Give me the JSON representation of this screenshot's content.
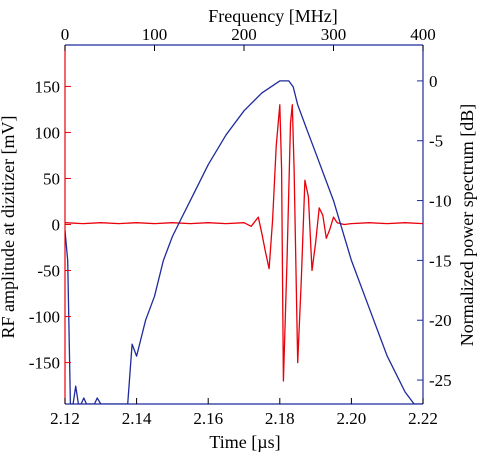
{
  "chart_data": {
    "type": "line",
    "xlabel_bottom": "Time [µs]",
    "xlabel_top": "Frequency [MHz]",
    "ylabel_left": "RF amplitude at dizitizer [mV]",
    "ylabel_right": "Normalized power spectrum [dB]",
    "x_bottom": {
      "range": [
        2.12,
        2.22
      ],
      "ticks": [
        2.12,
        2.14,
        2.16,
        2.18,
        2.2,
        2.22
      ],
      "tick_labels": [
        "2.12",
        "2.14",
        "2.16",
        "2.18",
        "2.20",
        "2.22"
      ]
    },
    "x_top": {
      "range": [
        0,
        400
      ],
      "ticks": [
        0,
        100,
        200,
        300,
        400
      ],
      "tick_labels": [
        "0",
        "100",
        "200",
        "300",
        "400"
      ]
    },
    "y_left": {
      "range": [
        -195,
        195
      ],
      "ticks": [
        -150,
        -100,
        -50,
        0,
        50,
        100,
        150
      ],
      "tick_labels": [
        "-150",
        "-100",
        "-50",
        "0",
        "50",
        "100",
        "150"
      ]
    },
    "y_right": {
      "range": [
        -27,
        3
      ],
      "ticks": [
        -25,
        -20,
        -15,
        -10,
        -5,
        0
      ],
      "tick_labels": [
        "-25",
        "-20",
        "-15",
        "-10",
        "-5",
        "0"
      ]
    },
    "grid": false,
    "series": [
      {
        "axis": "left-bottom",
        "color": "#e8000b",
        "x": [
          2.12,
          2.125,
          2.13,
          2.135,
          2.14,
          2.145,
          2.15,
          2.155,
          2.16,
          2.165,
          2.17,
          2.172,
          2.174,
          2.175,
          2.176,
          2.177,
          2.178,
          2.179,
          2.18,
          2.1805,
          2.181,
          2.182,
          2.183,
          2.1835,
          2.184,
          2.185,
          2.186,
          2.187,
          2.188,
          2.189,
          2.19,
          2.191,
          2.192,
          2.193,
          2.194,
          2.195,
          2.196,
          2.198,
          2.2,
          2.205,
          2.21,
          2.215,
          2.22
        ],
        "y": [
          2,
          1,
          2,
          1,
          2,
          1,
          2,
          1,
          2,
          1,
          2,
          -2,
          8,
          -10,
          -30,
          -48,
          5,
          85,
          130,
          60,
          -170,
          -40,
          110,
          130,
          60,
          -150,
          -60,
          48,
          30,
          -50,
          -20,
          18,
          10,
          -15,
          -5,
          8,
          2,
          0,
          1,
          2,
          1,
          2,
          1
        ]
      },
      {
        "axis": "right-top",
        "color": "#1f2a9c",
        "x": [
          0,
          3,
          6,
          9,
          12,
          15,
          18,
          21,
          24,
          27,
          30,
          33,
          36,
          40,
          45,
          50,
          55,
          60,
          65,
          70,
          75,
          80,
          90,
          100,
          110,
          120,
          130,
          140,
          150,
          160,
          180,
          200,
          220,
          240,
          250,
          255,
          260,
          270,
          280,
          300,
          320,
          340,
          360,
          380,
          390,
          400
        ],
        "y": [
          -12.5,
          -15,
          -27,
          -27,
          -25.5,
          -27,
          -27,
          -26.5,
          -27,
          -27,
          -27,
          -27,
          -26.5,
          -27,
          -27,
          -27,
          -27,
          -27,
          -27,
          -27,
          -22,
          -23,
          -20,
          -18,
          -15,
          -13,
          -11.5,
          -10,
          -8.5,
          -7,
          -4.5,
          -2.5,
          -1,
          0,
          0,
          -0.5,
          -2,
          -4,
          -6,
          -10,
          -15,
          -19,
          -23,
          -26,
          -27,
          -27
        ]
      }
    ]
  }
}
